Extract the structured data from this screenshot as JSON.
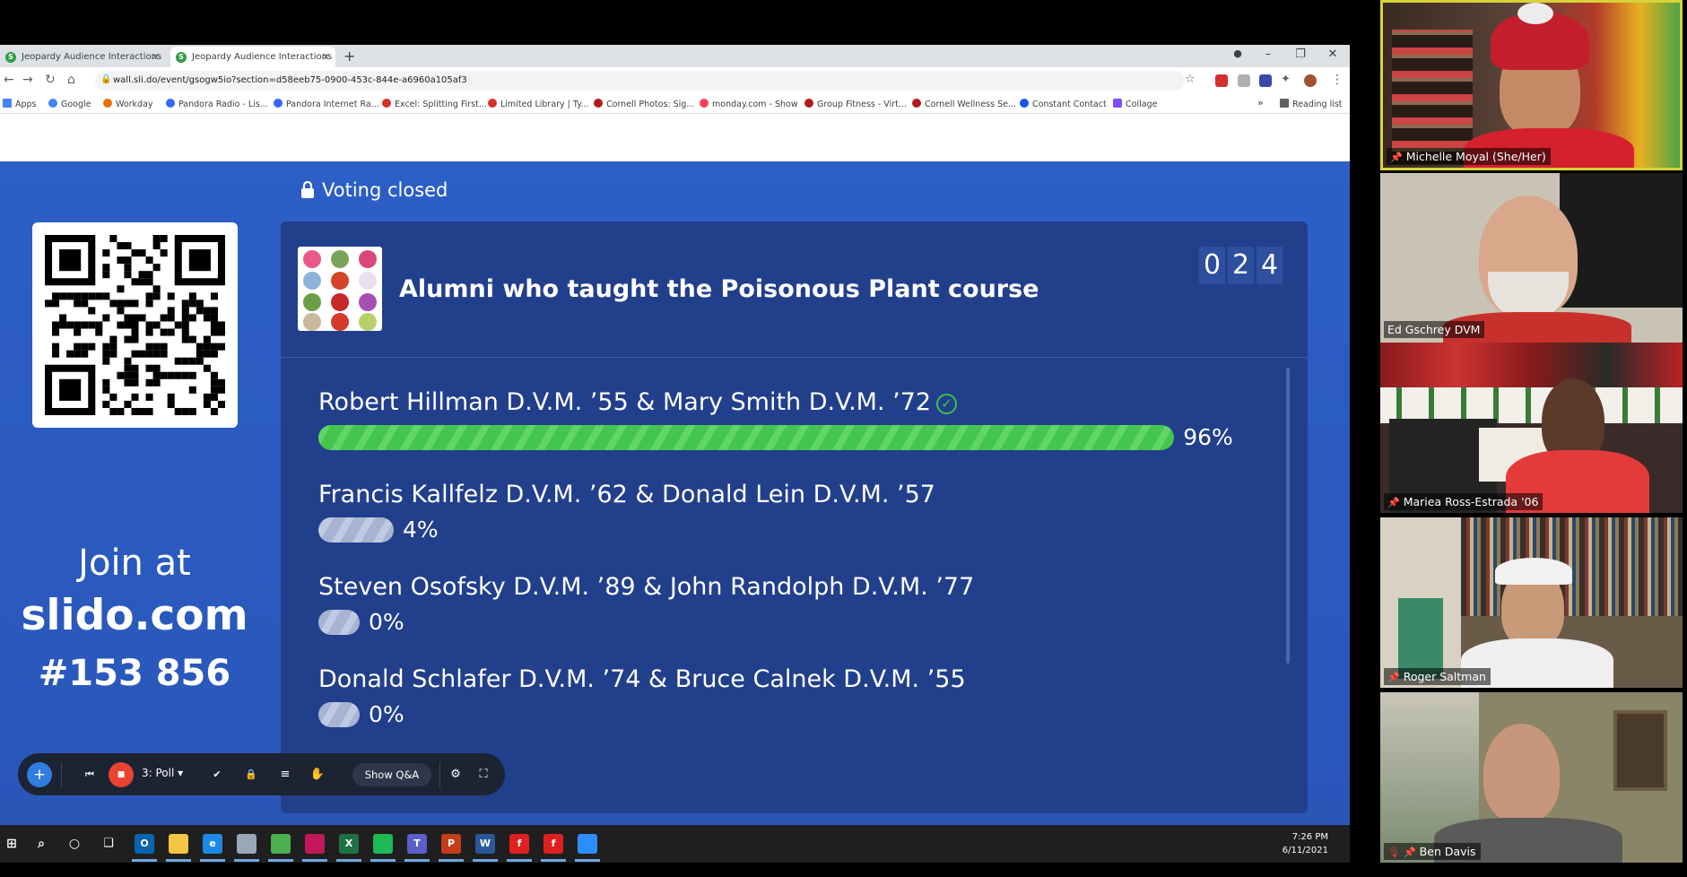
{
  "browser": {
    "tabs": [
      {
        "title": "Jeopardy Audience Interactions",
        "favicon": "slido-icon",
        "active": false
      },
      {
        "title": "Jeopardy Audience Interactions |",
        "favicon": "slido-icon",
        "active": true
      }
    ],
    "url": "wall.sli.do/event/gsogw5io?section=d58eeb75-0900-453c-844e-a6960a105af3",
    "bookmarks": [
      {
        "label": "Apps",
        "color": "#4285f4"
      },
      {
        "label": "Google",
        "color": "#4285f4"
      },
      {
        "label": "Workday",
        "color": "#e8710a"
      },
      {
        "label": "Pandora Radio - Lis...",
        "color": "#3668ff"
      },
      {
        "label": "Pandora Internet Ra...",
        "color": "#3668ff"
      },
      {
        "label": "Excel: Splitting First...",
        "color": "#d93025"
      },
      {
        "label": "Limited Library | Ty...",
        "color": "#d93025"
      },
      {
        "label": "Cornell Photos: Sig...",
        "color": "#b31b1b"
      },
      {
        "label": "monday.com - Show",
        "color": "#ff3d57"
      },
      {
        "label": "Group Fitness - Virt...",
        "color": "#b31b1b"
      },
      {
        "label": "Cornell Wellness Se...",
        "color": "#b31b1b"
      },
      {
        "label": "Constant Contact",
        "color": "#1856ed"
      },
      {
        "label": "Collage",
        "color": "#7c4dff"
      }
    ],
    "reading_list": "Reading list",
    "more_bookmarks": "»"
  },
  "slido": {
    "status": "Voting closed",
    "join": {
      "line1": "Join at",
      "line2": "slido.com",
      "line3": "#153 856"
    },
    "poll": {
      "title": "Alumni who taught the Poisonous Plant course",
      "vote_count_digits": [
        "0",
        "2",
        "4"
      ],
      "options": [
        {
          "text": "Robert Hillman D.V.M. ’55 & Mary Smith D.V.M. ’72",
          "percent": 96,
          "percent_label": "96%",
          "correct": true
        },
        {
          "text": "Francis Kallfelz D.V.M. ’62 & Donald Lein D.V.M. ’57",
          "percent": 4,
          "percent_label": "4%",
          "correct": false
        },
        {
          "text": "Steven Osofsky D.V.M. ’89 & John Randolph D.V.M. ’77",
          "percent": 0,
          "percent_label": "0%",
          "correct": false
        },
        {
          "text": "Donald Schlafer D.V.M. ’74 & Bruce Calnek D.V.M. ’55",
          "percent": 0,
          "percent_label": "0%",
          "correct": false
        }
      ]
    },
    "controls": {
      "poll_label": "3: Poll",
      "qa_label": "Show Q&A"
    }
  },
  "taskbar": {
    "time": "7:26 PM",
    "date": "6/11/2021",
    "apps": [
      {
        "name": "outlook-icon",
        "label": "O",
        "color": "#0a64ad"
      },
      {
        "name": "file-explorer-icon",
        "label": "",
        "color": "#f4c542"
      },
      {
        "name": "edge-icon",
        "label": "e",
        "color": "#1e88e5"
      },
      {
        "name": "app-icon",
        "label": "",
        "color": "#9aa7b8"
      },
      {
        "name": "chrome-icon",
        "label": "",
        "color": "#4caf50"
      },
      {
        "name": "app2-icon",
        "label": "",
        "color": "#c2185b"
      },
      {
        "name": "excel-icon",
        "label": "X",
        "color": "#1e7145"
      },
      {
        "name": "spotify-icon",
        "label": "",
        "color": "#1db954"
      },
      {
        "name": "teams-icon",
        "label": "T",
        "color": "#5b5fc7"
      },
      {
        "name": "powerpoint-icon",
        "label": "P",
        "color": "#c43e1c"
      },
      {
        "name": "word-icon",
        "label": "W",
        "color": "#2b579a"
      },
      {
        "name": "flash-icon",
        "label": "f",
        "color": "#e02020"
      },
      {
        "name": "flash2-icon",
        "label": "f",
        "color": "#e02020"
      },
      {
        "name": "zoom-icon",
        "label": "",
        "color": "#2d8cff"
      }
    ]
  },
  "participants": [
    {
      "name": "Michelle Moyal (She/Her)",
      "active_speaker": true
    },
    {
      "name": "Ed Gschrey DVM",
      "active_speaker": false
    },
    {
      "name": "Mariea Ross-Estrada '06",
      "active_speaker": false
    },
    {
      "name": "Roger Saltman",
      "active_speaker": false
    },
    {
      "name": "Ben Davis",
      "active_speaker": false
    }
  ]
}
